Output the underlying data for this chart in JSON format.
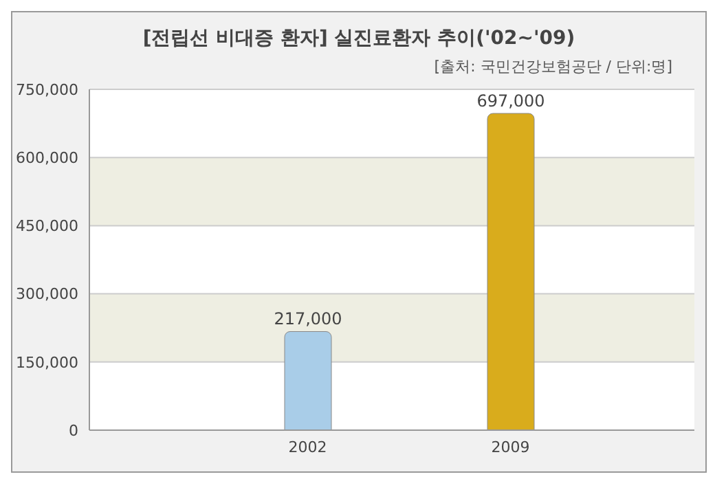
{
  "chart_data": {
    "type": "bar",
    "title": "[전립선 비대증 환자] 실진료환자 추이('02~'09)",
    "subtitle": "[출처: 국민건강보험공단 / 단위:명]",
    "categories": [
      "2002",
      "2009"
    ],
    "values": [
      217000,
      697000
    ],
    "value_labels": [
      "217,000",
      "697,000"
    ],
    "colors": [
      "#a9cde8",
      "#d9ac1c"
    ],
    "ylim": [
      0,
      750000
    ],
    "yticks": [
      0,
      {
        "value": 150000,
        "label": "150,000"
      },
      {
        "value": 300000,
        "label": "300,000"
      },
      {
        "value": 450000,
        "label": "450,000"
      },
      {
        "value": 600000,
        "label": "600,000"
      },
      {
        "value": 750000,
        "label": "750,000"
      }
    ],
    "grid": "y"
  }
}
